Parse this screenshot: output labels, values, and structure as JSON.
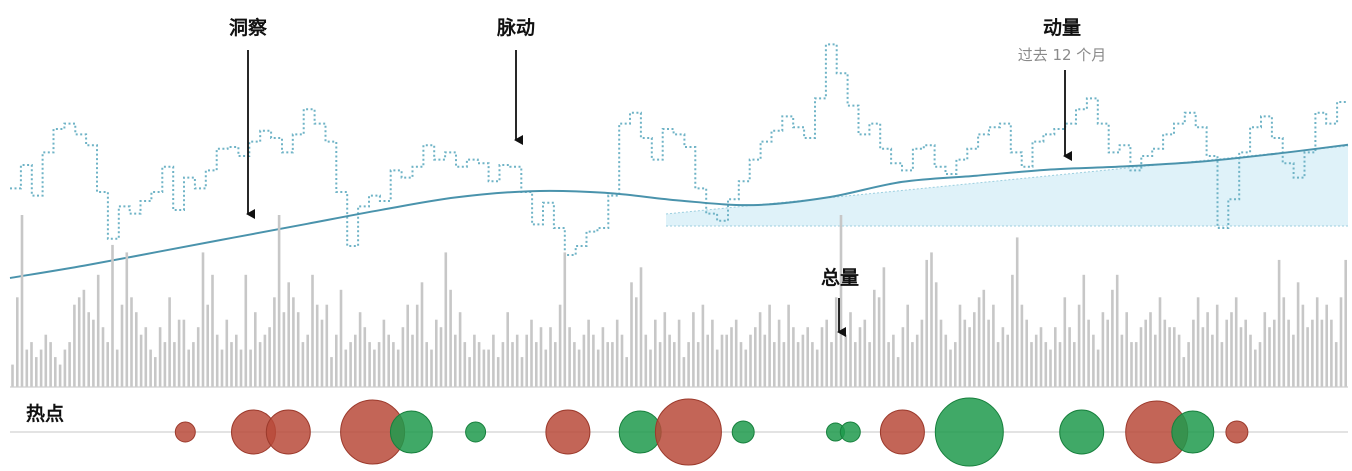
{
  "labels": {
    "insight": "洞察",
    "pulse": "脉动",
    "momentum": "动量",
    "momentum_sub": "过去 12 个月",
    "volume": "总量",
    "hotspot": "热点"
  },
  "colors": {
    "price_line": "#6fb3c6",
    "trend_line": "#4a93ac",
    "forecast_fill": "#d9f0f8",
    "volume_bar": "#c7c7c7",
    "baseline": "#cfcfcf",
    "bubble_red": "#b84a3a",
    "bubble_green": "#1f9a4c"
  },
  "chart_data": {
    "type": "line",
    "step_series": [
      62,
      75,
      58,
      82,
      95,
      98,
      92,
      86,
      60,
      34,
      52,
      48,
      55,
      60,
      74,
      50,
      68,
      62,
      72,
      84,
      85,
      80,
      88,
      94,
      90,
      82,
      92,
      106,
      98,
      88,
      60,
      30,
      52,
      58,
      55,
      72,
      68,
      74,
      86,
      78,
      82,
      74,
      78,
      76,
      66,
      75,
      74,
      60,
      42,
      54,
      40,
      25,
      30,
      38,
      40,
      58,
      98,
      104,
      90,
      78,
      95,
      92,
      85,
      62,
      48,
      44,
      56,
      66,
      78,
      88,
      94,
      102,
      96,
      90,
      112,
      142,
      126,
      108,
      92,
      98,
      84,
      76,
      72,
      84,
      86,
      74,
      70,
      78,
      84,
      92,
      96,
      98,
      82,
      74,
      88,
      92,
      95,
      98,
      106,
      112,
      98,
      82,
      86,
      72,
      80,
      84,
      92,
      98,
      104,
      96,
      80,
      40,
      56,
      82,
      96,
      102,
      90,
      76,
      68,
      82,
      104,
      98,
      110
    ],
    "trend_series": [
      0,
      8,
      17,
      26,
      35,
      44,
      52,
      56,
      55,
      50,
      47,
      52,
      62,
      66,
      70,
      72,
      75,
      80,
      86
    ],
    "volume_bars": [
      6,
      24,
      46,
      10,
      12,
      8,
      10,
      14,
      12,
      8,
      6,
      10,
      12,
      22,
      24,
      26,
      20,
      18,
      30,
      16,
      12,
      38,
      10,
      22,
      36,
      24,
      20,
      14,
      16,
      10,
      8,
      16,
      12,
      24,
      12,
      18,
      18,
      10,
      12,
      16,
      36,
      22,
      30,
      14,
      10,
      18,
      12,
      14,
      10,
      30,
      10,
      20,
      12,
      14,
      16,
      24,
      46,
      20,
      28,
      24,
      20,
      12,
      14,
      30,
      22,
      18,
      22,
      8,
      14,
      26,
      10,
      12,
      14,
      20,
      16,
      12,
      10,
      12,
      18,
      14,
      12,
      10,
      16,
      22,
      14,
      22,
      28,
      12,
      10,
      18,
      16,
      36,
      26,
      14,
      20,
      12,
      8,
      14,
      12,
      10,
      10,
      14,
      8,
      12,
      20,
      12,
      14,
      8,
      14,
      18,
      12,
      16,
      10,
      16,
      12,
      22,
      36,
      16,
      12,
      10,
      14,
      18,
      14,
      10,
      16,
      12,
      12,
      18,
      14,
      8,
      28,
      24,
      32,
      14,
      10,
      18,
      12,
      20,
      14,
      12,
      18,
      8,
      12,
      20,
      12,
      22,
      14,
      18,
      10,
      14,
      14,
      16,
      18,
      12,
      10,
      14,
      16,
      20,
      14,
      22,
      12,
      18,
      12,
      22,
      16,
      12,
      14,
      16,
      12,
      10,
      16,
      18,
      12,
      24,
      46,
      14,
      20,
      12,
      16,
      18,
      12,
      26,
      24,
      32,
      12,
      14,
      8,
      16,
      22,
      12,
      14,
      18,
      34,
      36,
      28,
      18,
      14,
      10,
      12,
      22,
      18,
      16,
      20,
      24,
      26,
      18,
      22,
      12,
      16,
      14,
      30,
      40,
      22,
      18,
      12,
      14,
      16,
      12,
      10,
      16,
      12,
      24,
      16,
      12,
      22,
      30,
      18,
      14,
      10,
      20,
      18,
      26,
      30,
      14,
      20,
      12,
      12,
      16,
      18,
      20,
      14,
      24,
      18,
      16,
      16,
      14,
      8,
      12,
      18,
      24,
      16,
      20,
      14,
      22,
      12,
      18,
      20,
      24,
      16,
      18,
      14,
      10,
      12,
      20,
      16,
      18,
      34,
      24,
      18,
      14,
      28,
      22,
      16,
      18,
      24,
      18,
      22,
      18,
      12,
      24,
      34
    ],
    "hotspots": [
      {
        "x": 0.131,
        "r": 10,
        "sentiment": "negative"
      },
      {
        "x": 0.182,
        "r": 22,
        "sentiment": "negative"
      },
      {
        "x": 0.208,
        "r": 22,
        "sentiment": "negative"
      },
      {
        "x": 0.271,
        "r": 32,
        "sentiment": "negative"
      },
      {
        "x": 0.3,
        "r": 21,
        "sentiment": "positive"
      },
      {
        "x": 0.348,
        "r": 10,
        "sentiment": "positive"
      },
      {
        "x": 0.417,
        "r": 22,
        "sentiment": "negative"
      },
      {
        "x": 0.471,
        "r": 21,
        "sentiment": "positive"
      },
      {
        "x": 0.507,
        "r": 33,
        "sentiment": "negative"
      },
      {
        "x": 0.548,
        "r": 11,
        "sentiment": "positive"
      },
      {
        "x": 0.617,
        "r": 9,
        "sentiment": "positive"
      },
      {
        "x": 0.628,
        "r": 10,
        "sentiment": "positive"
      },
      {
        "x": 0.667,
        "r": 22,
        "sentiment": "negative"
      },
      {
        "x": 0.717,
        "r": 34,
        "sentiment": "positive"
      },
      {
        "x": 0.801,
        "r": 22,
        "sentiment": "positive"
      },
      {
        "x": 0.857,
        "r": 31,
        "sentiment": "negative"
      },
      {
        "x": 0.884,
        "r": 21,
        "sentiment": "positive"
      },
      {
        "x": 0.917,
        "r": 11,
        "sentiment": "negative"
      }
    ]
  }
}
